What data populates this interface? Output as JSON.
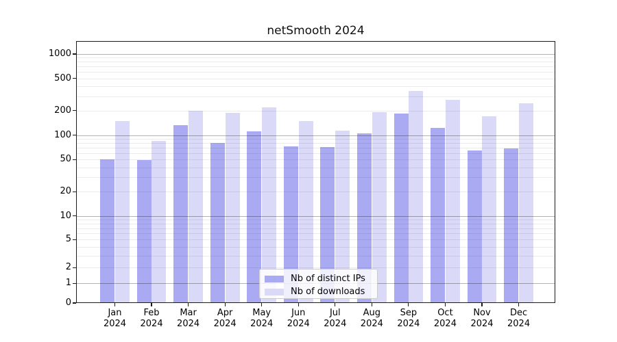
{
  "chart_data": {
    "type": "bar",
    "title": "netSmooth 2024",
    "year_label": "2024",
    "categories": [
      "Jan",
      "Feb",
      "Mar",
      "Apr",
      "May",
      "Jun",
      "Jul",
      "Aug",
      "Sep",
      "Oct",
      "Nov",
      "Dec"
    ],
    "series": [
      {
        "name": "Nb of distinct IPs",
        "color": "#aaaaf3",
        "values": [
          50,
          49,
          132,
          80,
          112,
          73,
          71,
          106,
          185,
          122,
          65,
          68
        ]
      },
      {
        "name": "Nb of downloads",
        "color": "#dadaf8",
        "values": [
          150,
          85,
          198,
          188,
          218,
          150,
          113,
          190,
          350,
          270,
          170,
          245
        ]
      }
    ],
    "y_axis": {
      "scale": "asinh-log",
      "tick_values": [
        0,
        1,
        2,
        5,
        10,
        20,
        50,
        100,
        200,
        500,
        1000
      ],
      "tick_labels": [
        "0",
        "1",
        "2",
        "5",
        "10",
        "20",
        "50",
        "100",
        "200",
        "500",
        "1000"
      ],
      "major_grid_values": [
        1,
        10,
        100,
        1000
      ],
      "grid": true,
      "ylim_top": 1400
    },
    "legend": {
      "position": "inside-bottom-center"
    },
    "colors": {
      "major_grid": "#b4b4b4",
      "minor_grid": "#ebebeb",
      "spine": "#1a1a1a",
      "background": "#ffffff"
    }
  }
}
